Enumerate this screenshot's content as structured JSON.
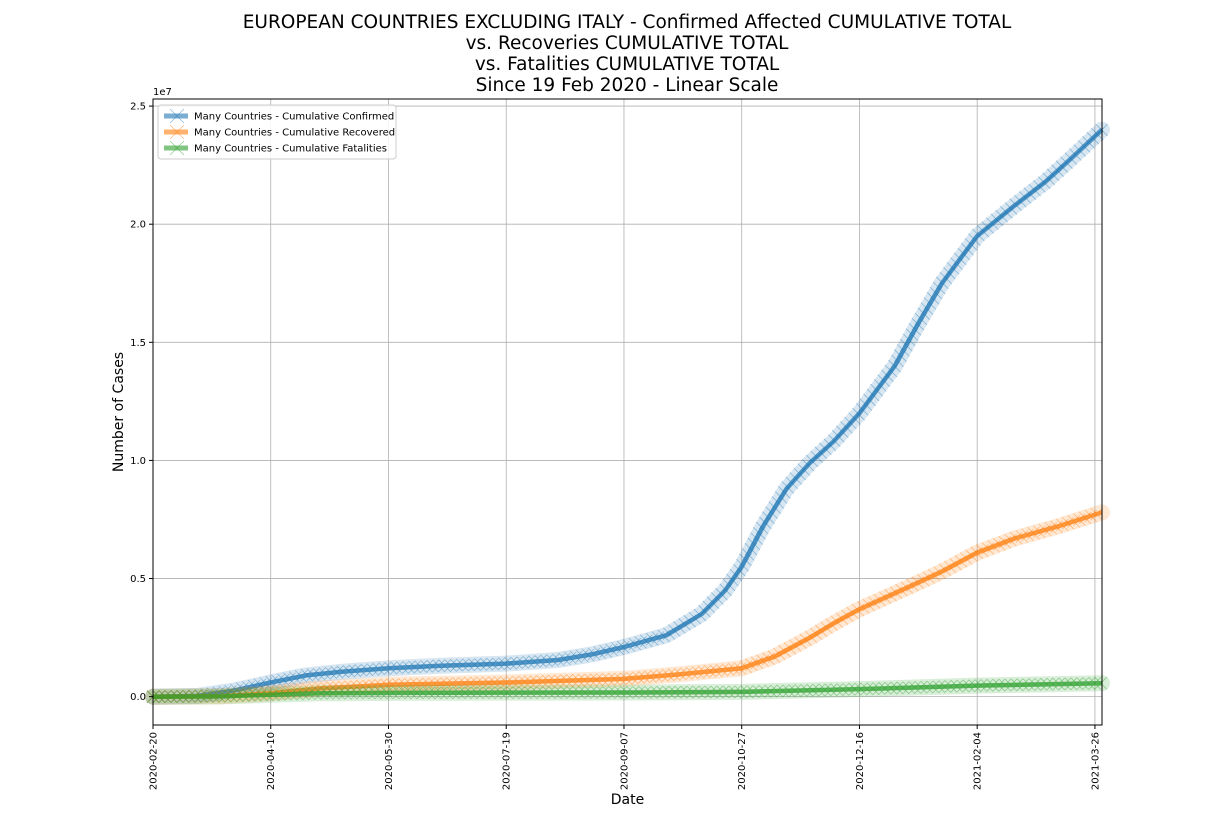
{
  "chart_data": {
    "type": "line",
    "title": "EUROPEAN COUNTRIES EXCLUDING ITALY - Confirmed Affected CUMULATIVE TOTAL\nvs. Recoveries CUMULATIVE TOTAL\nvs. Fatalities CUMULATIVE TOTAL\nSince 19 Feb 2020 - Linear Scale",
    "xlabel": "Date",
    "ylabel": "Number of Cases",
    "y_multiplier_label": "1e7",
    "x_range": [
      "2020-02-20",
      "2021-03-29"
    ],
    "ylim": [
      -1200000,
      25300000
    ],
    "x_ticks": [
      "2020-02-20",
      "2020-04-10",
      "2020-05-30",
      "2020-07-19",
      "2020-09-07",
      "2020-10-27",
      "2020-12-16",
      "2021-02-04",
      "2021-03-26"
    ],
    "y_ticks": [
      {
        "value": 0,
        "label": "0.0"
      },
      {
        "value": 5000000,
        "label": "0.5"
      },
      {
        "value": 10000000,
        "label": "1.0"
      },
      {
        "value": 15000000,
        "label": "1.5"
      },
      {
        "value": 20000000,
        "label": "2.0"
      },
      {
        "value": 25000000,
        "label": "2.5"
      }
    ],
    "grid": true,
    "legend_position": "top-left",
    "series": [
      {
        "name": "Many Countries - Cumulative Confirmed",
        "color": "#1f77b4",
        "points": [
          [
            "2020-02-20",
            0
          ],
          [
            "2020-03-10",
            30000
          ],
          [
            "2020-03-25",
            250000
          ],
          [
            "2020-04-10",
            600000
          ],
          [
            "2020-04-25",
            900000
          ],
          [
            "2020-05-10",
            1050000
          ],
          [
            "2020-05-30",
            1200000
          ],
          [
            "2020-06-20",
            1300000
          ],
          [
            "2020-07-19",
            1400000
          ],
          [
            "2020-08-10",
            1550000
          ],
          [
            "2020-08-25",
            1800000
          ],
          [
            "2020-09-07",
            2100000
          ],
          [
            "2020-09-25",
            2600000
          ],
          [
            "2020-10-10",
            3500000
          ],
          [
            "2020-10-20",
            4500000
          ],
          [
            "2020-10-27",
            5500000
          ],
          [
            "2020-11-05",
            7200000
          ],
          [
            "2020-11-15",
            8800000
          ],
          [
            "2020-11-25",
            9900000
          ],
          [
            "2020-12-05",
            10800000
          ],
          [
            "2020-12-16",
            12000000
          ],
          [
            "2020-12-31",
            14000000
          ],
          [
            "2021-01-10",
            15800000
          ],
          [
            "2021-01-20",
            17500000
          ],
          [
            "2021-02-04",
            19500000
          ],
          [
            "2021-02-20",
            20800000
          ],
          [
            "2021-03-05",
            21800000
          ],
          [
            "2021-03-15",
            22700000
          ],
          [
            "2021-03-29",
            24000000
          ]
        ]
      },
      {
        "name": "Many Countries - Cumulative Recovered",
        "color": "#ff7f0e",
        "points": [
          [
            "2020-02-20",
            0
          ],
          [
            "2020-03-20",
            20000
          ],
          [
            "2020-04-10",
            150000
          ],
          [
            "2020-05-01",
            350000
          ],
          [
            "2020-05-30",
            500000
          ],
          [
            "2020-07-19",
            600000
          ],
          [
            "2020-09-07",
            750000
          ],
          [
            "2020-10-01",
            950000
          ],
          [
            "2020-10-27",
            1200000
          ],
          [
            "2020-11-10",
            1700000
          ],
          [
            "2020-11-25",
            2500000
          ],
          [
            "2020-12-05",
            3100000
          ],
          [
            "2020-12-16",
            3700000
          ],
          [
            "2021-01-05",
            4600000
          ],
          [
            "2021-01-20",
            5300000
          ],
          [
            "2021-02-04",
            6100000
          ],
          [
            "2021-02-20",
            6700000
          ],
          [
            "2021-03-10",
            7200000
          ],
          [
            "2021-03-29",
            7800000
          ]
        ]
      },
      {
        "name": "Many Countries - Cumulative Fatalities",
        "color": "#2ca02c",
        "points": [
          [
            "2020-02-20",
            0
          ],
          [
            "2020-03-20",
            10000
          ],
          [
            "2020-04-10",
            80000
          ],
          [
            "2020-05-01",
            140000
          ],
          [
            "2020-05-30",
            160000
          ],
          [
            "2020-07-19",
            170000
          ],
          [
            "2020-09-07",
            175000
          ],
          [
            "2020-10-27",
            200000
          ],
          [
            "2020-12-16",
            320000
          ],
          [
            "2021-02-04",
            470000
          ],
          [
            "2021-03-29",
            570000
          ]
        ]
      }
    ]
  }
}
